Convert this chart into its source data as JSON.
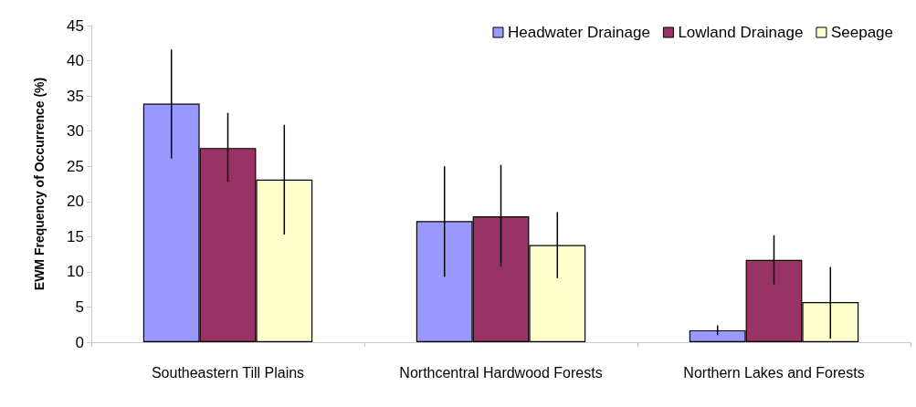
{
  "chart_data": {
    "type": "bar",
    "ylabel": "EWM Frequency of Occurrence (%)",
    "categories": [
      "Southeastern Till Plains",
      "Northcentral Hardwood Forests",
      "Northern Lakes and Forests"
    ],
    "series": [
      {
        "name": "Headwater Drainage",
        "color": "#9999ff",
        "values": [
          33.9,
          17.2,
          1.7
        ],
        "errors": [
          [
            26.1,
            41.6
          ],
          [
            9.3,
            25.0
          ],
          [
            1.0,
            2.4
          ]
        ]
      },
      {
        "name": "Lowland Drainage",
        "color": "#993366",
        "values": [
          27.6,
          17.9,
          11.7
        ],
        "errors": [
          [
            22.8,
            32.6
          ],
          [
            10.8,
            25.2
          ],
          [
            8.2,
            15.2
          ]
        ]
      },
      {
        "name": "Seepage",
        "color": "#ffffcc",
        "values": [
          23.1,
          13.8,
          5.7
        ],
        "errors": [
          [
            15.3,
            30.9
          ],
          [
            9.1,
            18.5
          ],
          [
            0.5,
            10.7
          ]
        ]
      }
    ],
    "ylim": [
      0,
      45
    ],
    "yticks": [
      0,
      5,
      10,
      15,
      20,
      25,
      30,
      35,
      40,
      45
    ],
    "grid": false,
    "legend": "top right"
  }
}
